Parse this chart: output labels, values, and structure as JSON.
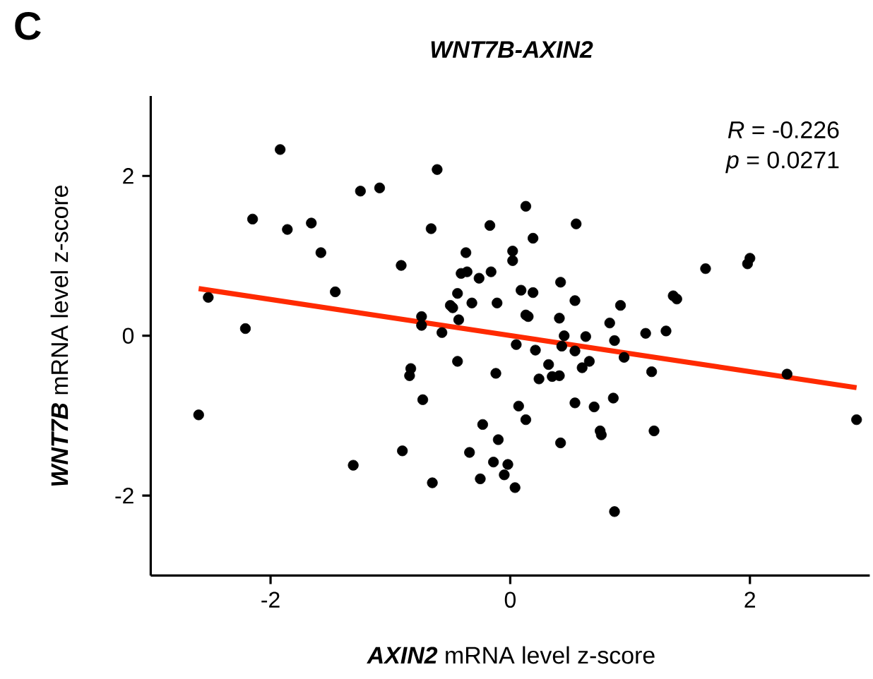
{
  "chart_data": {
    "type": "scatter",
    "marker": "circle",
    "title": "WNT7B-AXIN2",
    "xlabel": "**AXIN2** mRNA level z-score",
    "ylabel": "**WNT7B** mRNA level z-score",
    "annotations": [
      "C",
      "*R* = -0.226",
      "*p* = 0.0271"
    ],
    "xlim": [
      -3,
      3
    ],
    "ylim": [
      -3,
      3
    ],
    "xticks": [
      -2,
      0,
      2
    ],
    "yticks": [
      -2,
      0,
      2
    ],
    "series": [
      {
        "color": "#000000",
        "x": [
          -1.92,
          -0.61,
          -1.25,
          -1.09,
          -2.15,
          -1.86,
          -1.66,
          -1.58,
          -0.66,
          -0.17,
          -0.91,
          -0.37,
          -0.41,
          -0.36,
          -0.16,
          -0.26,
          -1.46,
          -2.52,
          -0.44,
          -0.32,
          -0.11,
          -0.5,
          -0.48,
          -0.43,
          -0.74,
          -0.74,
          -0.57,
          -2.21,
          0.13,
          0.55,
          0.19,
          0.02,
          0.02,
          0.42,
          0.09,
          0.19,
          0.54,
          0.92,
          1.63,
          2.0,
          1.98,
          1.36,
          1.39,
          0.13,
          0.15,
          0.41,
          0.83,
          1.13,
          1.3,
          0.45,
          0.63,
          0.87,
          0.05,
          0.21,
          0.43,
          0.54,
          0.95,
          0.32,
          0.6,
          0.66,
          -0.12,
          0.24,
          0.35,
          0.41,
          1.18,
          2.31,
          0.07,
          0.13,
          0.54,
          0.7,
          0.86,
          0.75,
          0.76,
          1.2,
          2.89,
          -0.1,
          0.42,
          -0.14,
          -0.02,
          -0.05,
          0.04,
          0.87,
          -0.44,
          -0.83,
          -0.84,
          -0.73,
          -2.6,
          -0.23,
          -0.9,
          -0.34,
          -1.31,
          -0.65,
          -0.25
        ],
        "values": [
          2.33,
          2.08,
          1.81,
          1.85,
          1.46,
          1.33,
          1.41,
          1.04,
          1.34,
          1.38,
          0.88,
          1.04,
          0.78,
          0.8,
          0.8,
          0.72,
          0.55,
          0.48,
          0.53,
          0.41,
          0.41,
          0.38,
          0.35,
          0.2,
          0.24,
          0.13,
          0.04,
          0.09,
          1.62,
          1.4,
          1.22,
          1.06,
          0.94,
          0.67,
          0.57,
          0.54,
          0.44,
          0.38,
          0.84,
          0.97,
          0.9,
          0.5,
          0.46,
          0.26,
          0.24,
          0.22,
          0.16,
          0.03,
          0.06,
          0.0,
          -0.01,
          -0.06,
          -0.11,
          -0.18,
          -0.13,
          -0.19,
          -0.27,
          -0.36,
          -0.4,
          -0.32,
          -0.47,
          -0.54,
          -0.51,
          -0.5,
          -0.45,
          -0.48,
          -0.88,
          -1.05,
          -0.84,
          -0.89,
          -0.78,
          -1.19,
          -1.24,
          -1.19,
          -1.05,
          -1.3,
          -1.34,
          -1.58,
          -1.61,
          -1.74,
          -1.9,
          -2.2,
          -0.32,
          -0.41,
          -0.5,
          -0.8,
          -0.99,
          -1.11,
          -1.44,
          -1.46,
          -1.62,
          -1.84,
          -1.79
        ]
      },
      {
        "type": "line",
        "color": "#ff2a00",
        "line_style": "solid",
        "marker": "none",
        "x": [
          -2.6,
          2.89
        ],
        "values": [
          0.59,
          -0.65
        ]
      }
    ]
  }
}
